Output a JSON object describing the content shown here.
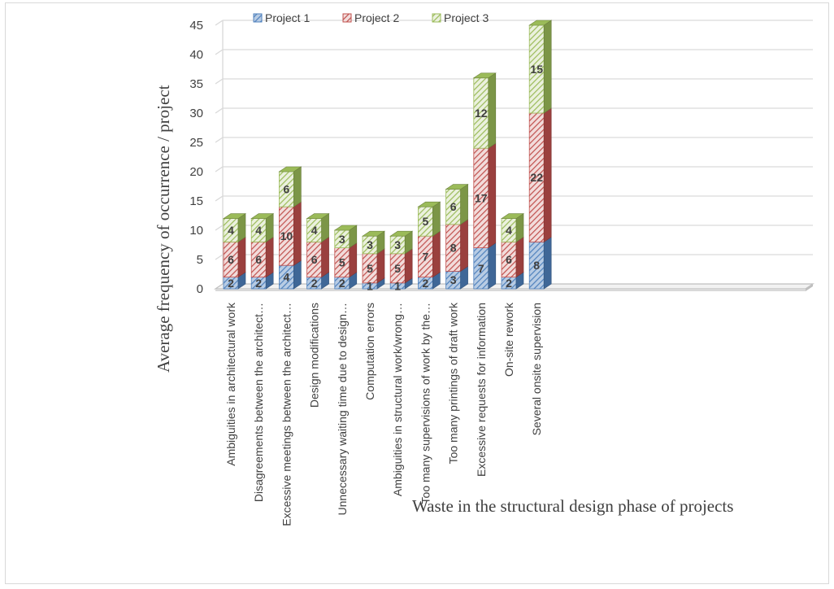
{
  "chart_data": {
    "type": "bar",
    "stacked": true,
    "three_d": true,
    "categories": [
      "Ambiguities in architectural work",
      "Disagreements between the architect…",
      "Excessive meetings between the architect…",
      "Design modifications",
      "Unnecessary waiting time due to design…",
      "Computation errors",
      "Ambiguities in structural work/wrong…",
      "Too many supervisions of work by the…",
      "Too many printings of draft work",
      "Excessive requests for information",
      "On-site rework",
      "Several onsite supervision"
    ],
    "series": [
      {
        "name": "Project 1",
        "values": [
          2,
          2,
          4,
          2,
          2,
          1,
          1,
          2,
          3,
          7,
          2,
          8
        ],
        "color": "#4f81bd"
      },
      {
        "name": "Project 2",
        "values": [
          6,
          6,
          10,
          6,
          5,
          5,
          5,
          7,
          8,
          17,
          6,
          22
        ],
        "color": "#c0504d"
      },
      {
        "name": "Project 3",
        "values": [
          4,
          4,
          6,
          4,
          3,
          3,
          3,
          5,
          6,
          12,
          4,
          15
        ],
        "color": "#9bbb59"
      }
    ],
    "xlabel": "Waste in the structural design phase of projects",
    "ylabel": "Average frequency of occurrence / project",
    "ylim": [
      0,
      45
    ],
    "yticks": [
      0,
      5,
      10,
      15,
      20,
      25,
      30,
      35,
      40,
      45
    ],
    "grid": true,
    "legend": "top"
  }
}
